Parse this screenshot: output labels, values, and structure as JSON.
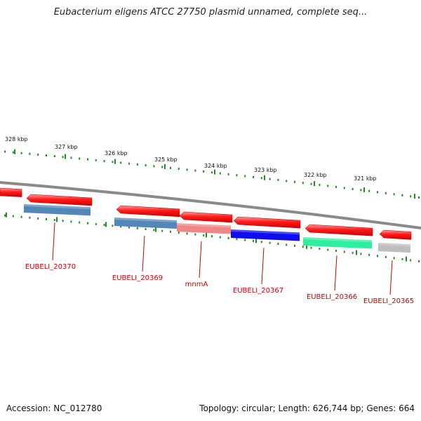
{
  "title": "Eubacterium eligens ATCC 27750 plasmid unnamed, complete seq...",
  "footer": {
    "accession": "Accession: NC_012780",
    "topology": "Topology: circular; Length: 626,744 bp; Genes: 664"
  },
  "chart_data": {
    "type": "genome-map",
    "scale_labels": [
      "328 kbp",
      "327 kbp",
      "326 kbp",
      "325 kbp",
      "324 kbp",
      "323 kbp",
      "322 kbp",
      "321 kbp"
    ],
    "colors": {
      "forward_arrow": "#ff1a1a",
      "backbone": "#888888",
      "ticks": "#228b22",
      "label": "#cc0000"
    },
    "genes": [
      {
        "label": "EUBELI_20370",
        "color": "#4a7fb5"
      },
      {
        "label": "EUBELI_20369",
        "color": "#4a7fb5"
      },
      {
        "label": "mnmA",
        "color": "#f08080"
      },
      {
        "label": "EUBELI_20367",
        "color": "#0000ee"
      },
      {
        "label": "EUBELI_20366",
        "color": "#22ee99"
      },
      {
        "label": "EUBELI_20365",
        "color": "#bbbbbb"
      }
    ]
  }
}
